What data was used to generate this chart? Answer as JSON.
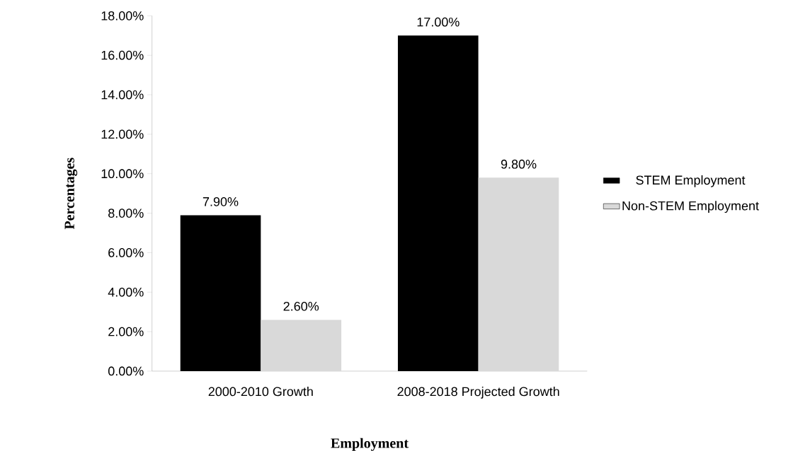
{
  "chart_data": {
    "type": "bar",
    "categories": [
      "2000-2010 Growth",
      "2008-2018 Projected Growth"
    ],
    "series": [
      {
        "name": "STEM Employment",
        "color": "#000000",
        "values": [
          7.9,
          17.0
        ],
        "value_labels": [
          "7.90%",
          "17.00%"
        ]
      },
      {
        "name": "Non-STEM Employment",
        "color": "#d9d9d9",
        "values": [
          2.6,
          9.8
        ],
        "value_labels": [
          "2.60%",
          "9.80%"
        ]
      }
    ],
    "xlabel": "Employment",
    "ylabel": "Percentages",
    "ylim": [
      0,
      18
    ],
    "yticks": [
      {
        "value": 0,
        "label": "0.00%"
      },
      {
        "value": 2,
        "label": "2.00%"
      },
      {
        "value": 4,
        "label": "4.00%"
      },
      {
        "value": 6,
        "label": "6.00%"
      },
      {
        "value": 8,
        "label": "8.00%"
      },
      {
        "value": 10,
        "label": "10.00%"
      },
      {
        "value": 12,
        "label": "12.00%"
      },
      {
        "value": 14,
        "label": "14.00%"
      },
      {
        "value": 16,
        "label": "16.00%"
      },
      {
        "value": 18,
        "label": "18.00%"
      }
    ],
    "legend": "right",
    "grid": false
  }
}
